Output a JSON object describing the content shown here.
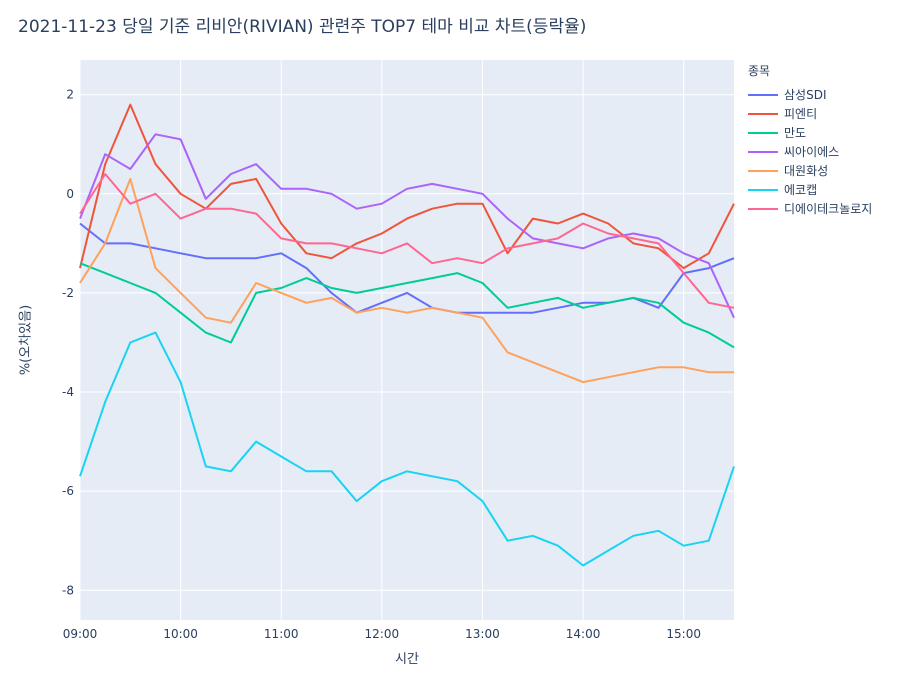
{
  "chart_data": {
    "type": "line",
    "title": "2021-11-23 당일 기준 리비안(RIVIAN) 관련주 TOP7 테마 비교 차트(등락율)",
    "xlabel": "시간",
    "ylabel": "%(오차있음)",
    "legend_title": "종목",
    "legend_position": "right",
    "grid": true,
    "xlim": [
      "09:00",
      "15:30"
    ],
    "ylim": [
      -8.6,
      2.7
    ],
    "x_ticks": [
      "09:00",
      "10:00",
      "11:00",
      "12:00",
      "13:00",
      "14:00",
      "15:00"
    ],
    "y_ticks": [
      2,
      0,
      -2,
      -4,
      -6,
      -8
    ],
    "x": [
      "09:00",
      "09:15",
      "09:30",
      "09:45",
      "10:00",
      "10:15",
      "10:30",
      "10:45",
      "11:00",
      "11:15",
      "11:30",
      "11:45",
      "12:00",
      "12:15",
      "12:30",
      "12:45",
      "13:00",
      "13:15",
      "13:30",
      "13:45",
      "14:00",
      "14:15",
      "14:30",
      "14:45",
      "15:00",
      "15:15",
      "15:30"
    ],
    "series": [
      {
        "name": "삼성SDI",
        "color": "#636efa",
        "values": [
          -0.6,
          -1.0,
          -1.0,
          -1.1,
          -1.2,
          -1.3,
          -1.3,
          -1.3,
          -1.2,
          -1.5,
          -2.0,
          -2.4,
          -2.2,
          -2.0,
          -2.3,
          -2.4,
          -2.4,
          -2.4,
          -2.4,
          -2.3,
          -2.2,
          -2.2,
          -2.1,
          -2.3,
          -1.6,
          -1.5,
          -1.3
        ]
      },
      {
        "name": "피엔티",
        "color": "#ef553b",
        "values": [
          -1.5,
          0.6,
          1.8,
          0.6,
          0.0,
          -0.3,
          0.2,
          0.3,
          -0.6,
          -1.2,
          -1.3,
          -1.0,
          -0.8,
          -0.5,
          -0.3,
          -0.2,
          -0.2,
          -1.2,
          -0.5,
          -0.6,
          -0.4,
          -0.6,
          -1.0,
          -1.1,
          -1.5,
          -1.2,
          -0.2
        ]
      },
      {
        "name": "만도",
        "color": "#00cc96",
        "values": [
          -1.4,
          -1.6,
          -1.8,
          -2.0,
          -2.4,
          -2.8,
          -3.0,
          -2.0,
          -1.9,
          -1.7,
          -1.9,
          -2.0,
          -1.9,
          -1.8,
          -1.7,
          -1.6,
          -1.8,
          -2.3,
          -2.2,
          -2.1,
          -2.3,
          -2.2,
          -2.1,
          -2.2,
          -2.6,
          -2.8,
          -3.1
        ]
      },
      {
        "name": "씨아이에스",
        "color": "#ab63fa",
        "values": [
          -0.5,
          0.8,
          0.5,
          1.2,
          1.1,
          -0.1,
          0.4,
          0.6,
          0.1,
          0.1,
          0.0,
          -0.3,
          -0.2,
          0.1,
          0.2,
          0.1,
          0.0,
          -0.5,
          -0.9,
          -1.0,
          -1.1,
          -0.9,
          -0.8,
          -0.9,
          -1.2,
          -1.4,
          -2.5
        ]
      },
      {
        "name": "대원화성",
        "color": "#ffa15a",
        "values": [
          -1.8,
          -1.0,
          0.3,
          -1.5,
          -2.0,
          -2.5,
          -2.6,
          -1.8,
          -2.0,
          -2.2,
          -2.1,
          -2.4,
          -2.3,
          -2.4,
          -2.3,
          -2.4,
          -2.5,
          -3.2,
          -3.4,
          -3.6,
          -3.8,
          -3.7,
          -3.6,
          -3.5,
          -3.5,
          -3.6,
          -3.6
        ]
      },
      {
        "name": "에코캡",
        "color": "#19d3f3",
        "values": [
          -5.7,
          -4.2,
          -3.0,
          -2.8,
          -3.8,
          -5.5,
          -5.6,
          -5.0,
          -5.3,
          -5.6,
          -5.6,
          -6.2,
          -5.8,
          -5.6,
          -5.7,
          -5.8,
          -6.2,
          -7.0,
          -6.9,
          -7.1,
          -7.5,
          -7.2,
          -6.9,
          -6.8,
          -7.1,
          -7.0,
          -5.5
        ]
      },
      {
        "name": "디에이테크놀로지",
        "color": "#ff6692",
        "values": [
          -0.4,
          0.4,
          -0.2,
          0.0,
          -0.5,
          -0.3,
          -0.3,
          -0.4,
          -0.9,
          -1.0,
          -1.0,
          -1.1,
          -1.2,
          -1.0,
          -1.4,
          -1.3,
          -1.4,
          -1.1,
          -1.0,
          -0.9,
          -0.6,
          -0.8,
          -0.9,
          -1.0,
          -1.6,
          -2.2,
          -2.3
        ]
      }
    ]
  }
}
